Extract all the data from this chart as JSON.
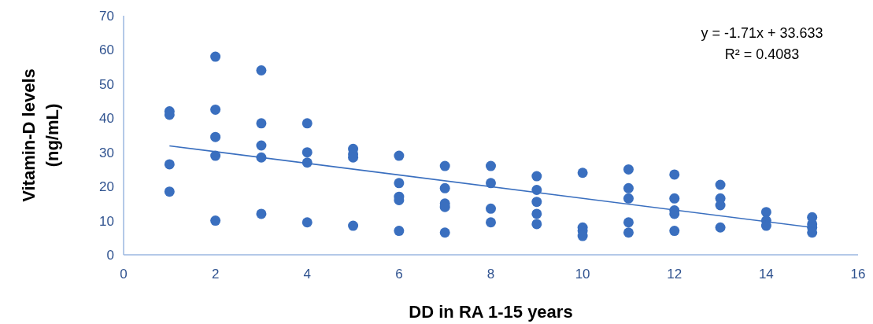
{
  "chart_data": {
    "type": "scatter",
    "xlabel": "DD in RA 1-15 years",
    "ylabel": "Vitamin-D levels (ng/mL)",
    "xlim": [
      0,
      16
    ],
    "xticks": [
      0,
      2,
      4,
      6,
      8,
      10,
      12,
      14,
      16
    ],
    "ylim": [
      0,
      70
    ],
    "yticks": [
      0,
      10,
      20,
      30,
      40,
      50,
      60,
      70
    ],
    "grid": false,
    "annotations": [
      "y = -1.71x + 33.633",
      "R² = 0.4083"
    ],
    "series": [
      {
        "marker": "circle",
        "color": "#3a6fbf",
        "x": [
          1,
          1,
          1,
          1,
          2,
          2,
          2,
          2,
          2,
          3,
          3,
          3,
          3,
          3,
          4,
          4,
          4,
          4,
          5,
          5,
          5,
          5,
          6,
          6,
          6,
          6,
          6,
          7,
          7,
          7,
          7,
          7,
          8,
          8,
          8,
          8,
          9,
          9,
          9,
          9,
          9,
          10,
          10,
          10,
          10,
          11,
          11,
          11,
          11,
          11,
          12,
          12,
          12,
          12,
          12,
          13,
          13,
          13,
          13,
          14,
          14,
          14,
          15,
          15,
          15,
          15
        ],
        "values": [
          42,
          41,
          26.5,
          18.5,
          58,
          42.5,
          34.5,
          29,
          10,
          54,
          38.5,
          32,
          28.5,
          12,
          38.5,
          30,
          27,
          9.5,
          31,
          29.5,
          28.5,
          8.5,
          29,
          21,
          17,
          16,
          7,
          26,
          19.5,
          15,
          14,
          6.5,
          26,
          21,
          13.5,
          9.5,
          23,
          19,
          15.5,
          12,
          9,
          24,
          8,
          7,
          5.5,
          25,
          19.5,
          16.5,
          9.5,
          6.5,
          23.5,
          16.5,
          13,
          12,
          7,
          20.5,
          16.5,
          14.5,
          8,
          12.5,
          10,
          8.5,
          11,
          9,
          8,
          6.5
        ]
      },
      {
        "type": "line",
        "marker": "none",
        "color": "#3a6fbf",
        "x": [
          1,
          15
        ],
        "values": [
          31.9,
          8.0
        ]
      }
    ]
  }
}
